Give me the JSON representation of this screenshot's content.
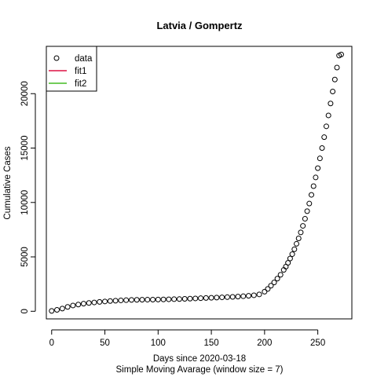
{
  "chart_data": {
    "type": "scatter",
    "title": "Latvia / Gompertz",
    "xlabel": "Days since 2020-03-18",
    "xlabel2": "Simple Moving Avarage (window size = 7)",
    "ylabel": "Cumulative Cases",
    "xlim": [
      -5,
      282
    ],
    "ylim": [
      -700,
      24350
    ],
    "xticks": [
      0,
      50,
      100,
      150,
      200,
      250
    ],
    "yticks": [
      0,
      5000,
      10000,
      15000,
      20000
    ],
    "legend": {
      "position": "top-left",
      "entries": [
        {
          "label": "data",
          "kind": "marker",
          "color": "#000000"
        },
        {
          "label": "fit1",
          "kind": "line",
          "color": "#dd1144"
        },
        {
          "label": "fit2",
          "kind": "line",
          "color": "#44bb22"
        }
      ]
    },
    "series": [
      {
        "name": "data",
        "x": [
          0,
          5,
          10,
          15,
          20,
          25,
          30,
          35,
          40,
          45,
          50,
          55,
          60,
          65,
          70,
          75,
          80,
          85,
          90,
          95,
          100,
          105,
          110,
          115,
          120,
          125,
          130,
          135,
          140,
          145,
          150,
          155,
          160,
          165,
          170,
          175,
          180,
          185,
          190,
          195,
          200,
          203,
          206,
          209,
          212,
          215,
          218,
          220,
          222,
          224,
          226,
          228,
          230,
          232,
          234,
          236,
          238,
          240,
          242,
          244,
          246,
          248,
          250,
          252,
          254,
          256,
          258,
          260,
          262,
          264,
          266,
          268,
          270,
          272
        ],
        "y": [
          30,
          130,
          250,
          400,
          530,
          620,
          700,
          760,
          810,
          860,
          900,
          940,
          970,
          1000,
          1020,
          1040,
          1050,
          1060,
          1065,
          1070,
          1075,
          1085,
          1100,
          1110,
          1120,
          1140,
          1160,
          1180,
          1200,
          1220,
          1240,
          1260,
          1280,
          1300,
          1320,
          1350,
          1380,
          1420,
          1470,
          1550,
          1800,
          2050,
          2350,
          2650,
          3000,
          3350,
          3800,
          4100,
          4450,
          4850,
          5250,
          5700,
          6200,
          6700,
          7250,
          7850,
          8500,
          9200,
          9900,
          10700,
          11500,
          12300,
          13150,
          14050,
          15000,
          16000,
          17000,
          18000,
          19100,
          20200,
          21300,
          22400,
          23500,
          23600
        ]
      }
    ]
  }
}
